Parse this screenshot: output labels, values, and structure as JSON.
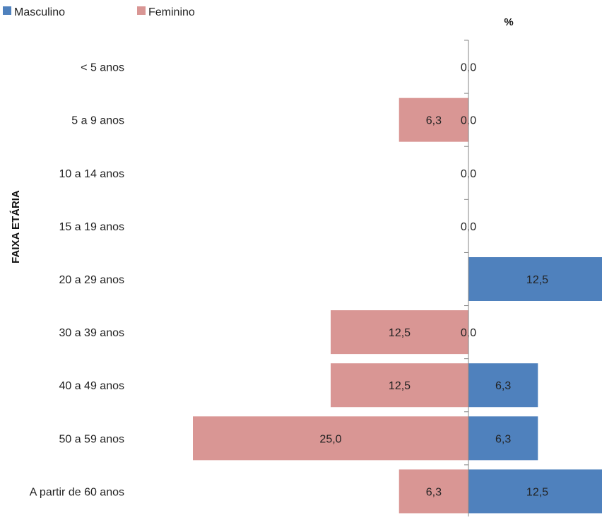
{
  "chart_data": {
    "type": "bar",
    "orientation": "horizontal-population-pyramid",
    "ylabel": "FAIXA ETÁRIA",
    "unit": "%",
    "categories": [
      "< 5 anos",
      "5 a 9 anos",
      "10 a 14 anos",
      "15 a 19 anos",
      "20 a 29 anos",
      "30 a 39 anos",
      "40 a 49 anos",
      "50 a 59 anos",
      "A partir de 60 anos"
    ],
    "series": [
      {
        "name": "Masculino",
        "color": "#4f81bd",
        "values": [
          0.0,
          0.0,
          0.0,
          0.0,
          12.5,
          0.0,
          6.3,
          6.3,
          12.5
        ],
        "labels": [
          "0,0",
          "0,0",
          "0,0",
          "0,0",
          "12,5",
          "0,0",
          "6,3",
          "6,3",
          "12,5"
        ]
      },
      {
        "name": "Feminino",
        "color": "#d99694",
        "values": [
          null,
          6.3,
          null,
          null,
          null,
          12.5,
          12.5,
          25.0,
          6.3
        ],
        "labels": [
          "",
          "6,3",
          "",
          "",
          "",
          "12,5",
          "12,5",
          "25,0",
          "6,3"
        ]
      }
    ],
    "xlim": [
      -25,
      12.5
    ],
    "legend_position": "top-left",
    "grid": false
  }
}
